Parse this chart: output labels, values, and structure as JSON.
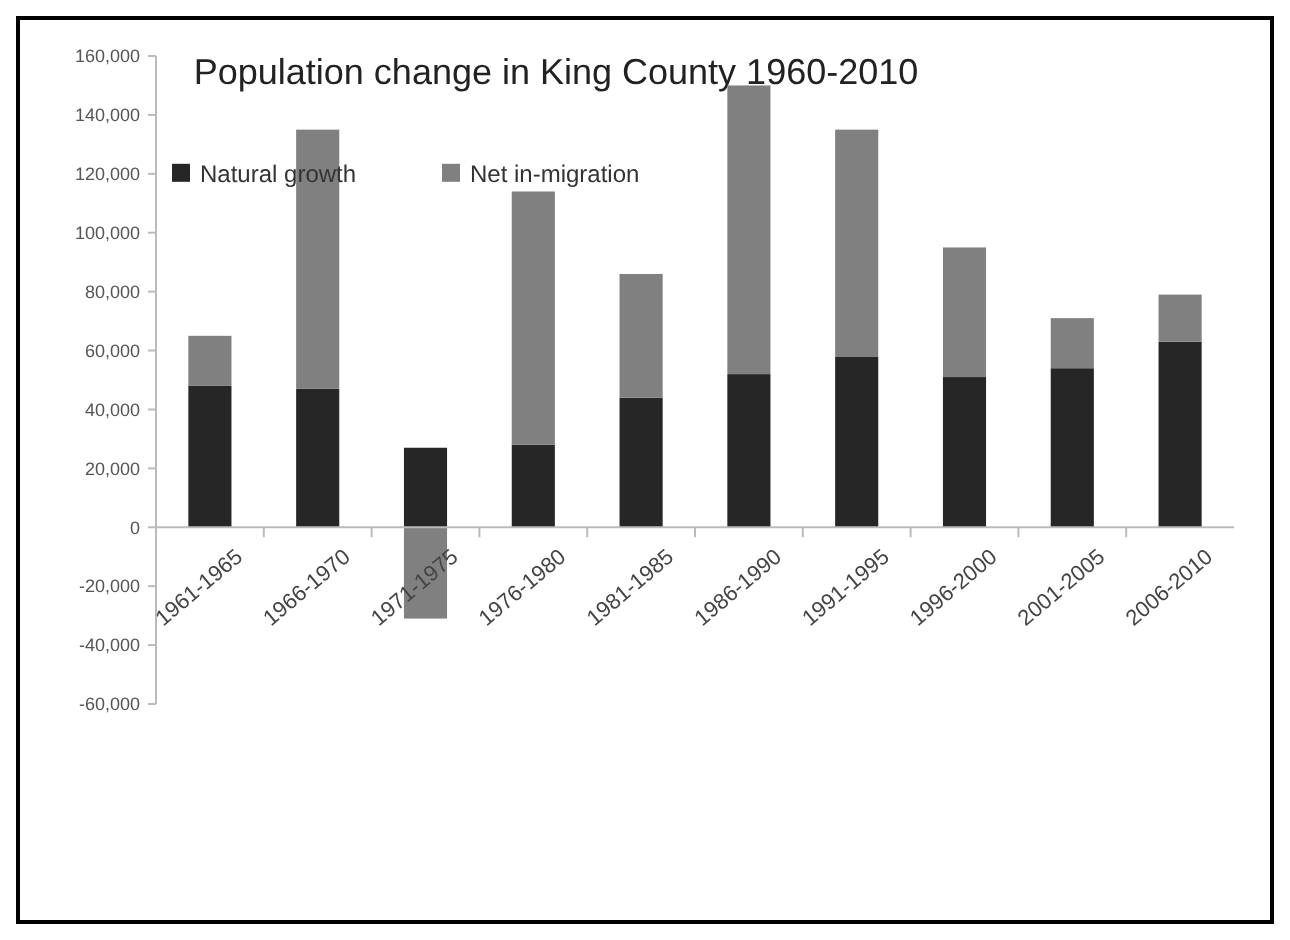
{
  "chart_data": {
    "type": "bar",
    "title": "Population change in King County 1960-2010",
    "stacked": true,
    "categories": [
      "1961-1965",
      "1966-1970",
      "1971-1975",
      "1976-1980",
      "1981-1985",
      "1986-1990",
      "1991-1995",
      "1996-2000",
      "2001-2005",
      "2006-2010"
    ],
    "series": [
      {
        "name": "Natural growth",
        "color": "#262626",
        "values": [
          48000,
          47000,
          27000,
          28000,
          44000,
          52000,
          58000,
          51000,
          54000,
          63000
        ]
      },
      {
        "name": "Net in-migration",
        "color": "#808080",
        "values": [
          17000,
          88000,
          -31000,
          86000,
          42000,
          98000,
          77000,
          44000,
          17000,
          16000
        ]
      }
    ],
    "ylim": [
      -60000,
      160000
    ],
    "yticks": [
      {
        "value": -60000,
        "label": "-60,000"
      },
      {
        "value": -40000,
        "label": "-40,000"
      },
      {
        "value": -20000,
        "label": "-20,000"
      },
      {
        "value": 0,
        "label": "0"
      },
      {
        "value": 20000,
        "label": "20,000"
      },
      {
        "value": 40000,
        "label": "40,000"
      },
      {
        "value": 60000,
        "label": "60,000"
      },
      {
        "value": 80000,
        "label": "80,000"
      },
      {
        "value": 100000,
        "label": "100,000"
      },
      {
        "value": 120000,
        "label": "120,000"
      },
      {
        "value": 140000,
        "label": "140,000"
      },
      {
        "value": 160000,
        "label": "160,000"
      }
    ],
    "legend": "top left",
    "grid": false
  }
}
